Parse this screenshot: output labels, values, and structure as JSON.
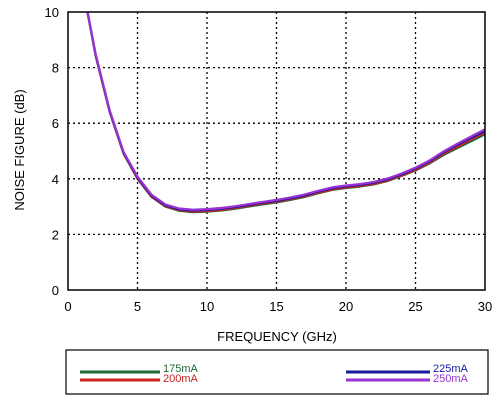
{
  "chart_data": {
    "type": "line",
    "title": "",
    "xlabel": "FREQUENCY (GHz)",
    "ylabel": "NOISE FIGURE (dB)",
    "xlim": [
      0,
      30
    ],
    "ylim": [
      0,
      10
    ],
    "xticks": [
      0,
      5,
      10,
      15,
      20,
      25,
      30
    ],
    "yticks": [
      0,
      2,
      4,
      6,
      8,
      10
    ],
    "grid": true,
    "grid_style": "dotted",
    "legend_position": "bottom",
    "series": [
      {
        "name": "175mA",
        "color": "#1e6b34",
        "x": [
          1.4,
          2,
          3,
          4,
          5,
          6,
          7,
          8,
          9,
          10,
          11,
          12,
          13,
          14,
          15,
          16,
          17,
          18,
          19,
          20,
          21,
          22,
          23,
          24,
          25,
          26,
          27,
          28,
          29,
          30
        ],
        "y": [
          10,
          8.4,
          6.4,
          4.9,
          4.0,
          3.35,
          3.0,
          2.85,
          2.8,
          2.82,
          2.86,
          2.92,
          3.0,
          3.08,
          3.15,
          3.24,
          3.34,
          3.48,
          3.6,
          3.67,
          3.72,
          3.8,
          3.92,
          4.1,
          4.3,
          4.55,
          4.85,
          5.1,
          5.35,
          5.6
        ]
      },
      {
        "name": "200mA",
        "color": "#cc2222",
        "x": [
          1.4,
          2,
          3,
          4,
          5,
          6,
          7,
          8,
          9,
          10,
          11,
          12,
          13,
          14,
          15,
          16,
          17,
          18,
          19,
          20,
          21,
          22,
          23,
          24,
          25,
          26,
          27,
          28,
          29,
          30
        ],
        "y": [
          10,
          8.42,
          6.42,
          4.92,
          4.02,
          3.37,
          3.02,
          2.87,
          2.82,
          2.84,
          2.88,
          2.95,
          3.03,
          3.11,
          3.18,
          3.27,
          3.37,
          3.5,
          3.62,
          3.69,
          3.74,
          3.82,
          3.94,
          4.12,
          4.32,
          4.58,
          4.9,
          5.15,
          5.42,
          5.66
        ]
      },
      {
        "name": "225mA",
        "color": "#1a1aa0",
        "x": [
          1.4,
          2,
          3,
          4,
          5,
          6,
          7,
          8,
          9,
          10,
          11,
          12,
          13,
          14,
          15,
          16,
          17,
          18,
          19,
          20,
          21,
          22,
          23,
          24,
          25,
          26,
          27,
          28,
          29,
          30
        ],
        "y": [
          10,
          8.44,
          6.44,
          4.94,
          4.05,
          3.4,
          3.05,
          2.9,
          2.86,
          2.88,
          2.92,
          2.98,
          3.06,
          3.14,
          3.21,
          3.3,
          3.4,
          3.54,
          3.66,
          3.73,
          3.78,
          3.86,
          3.98,
          4.16,
          4.37,
          4.63,
          4.95,
          5.22,
          5.48,
          5.72
        ]
      },
      {
        "name": "250mA",
        "color": "#9a32d6",
        "x": [
          1.4,
          2,
          3,
          4,
          5,
          6,
          7,
          8,
          9,
          10,
          11,
          12,
          13,
          14,
          15,
          16,
          17,
          18,
          19,
          20,
          21,
          22,
          23,
          24,
          25,
          26,
          27,
          28,
          29,
          30
        ],
        "y": [
          10,
          8.46,
          6.46,
          4.96,
          4.08,
          3.43,
          3.08,
          2.93,
          2.89,
          2.91,
          2.95,
          3.01,
          3.09,
          3.17,
          3.24,
          3.33,
          3.43,
          3.57,
          3.69,
          3.76,
          3.81,
          3.89,
          4.01,
          4.19,
          4.4,
          4.66,
          4.98,
          5.26,
          5.52,
          5.78
        ]
      }
    ]
  }
}
